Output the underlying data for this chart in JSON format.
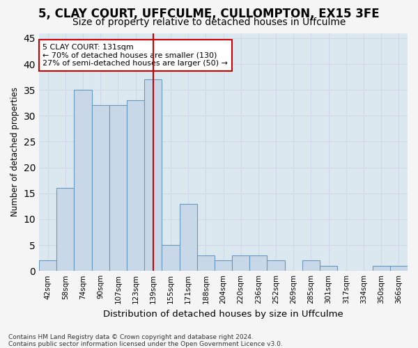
{
  "title1": "5, CLAY COURT, UFFCULME, CULLOMPTON, EX15 3FE",
  "title2": "Size of property relative to detached houses in Uffculme",
  "xlabel": "Distribution of detached houses by size in Uffculme",
  "ylabel": "Number of detached properties",
  "categories": [
    "42sqm",
    "58sqm",
    "74sqm",
    "90sqm",
    "107sqm",
    "123sqm",
    "139sqm",
    "155sqm",
    "171sqm",
    "188sqm",
    "204sqm",
    "220sqm",
    "236sqm",
    "252sqm",
    "269sqm",
    "285sqm",
    "301sqm",
    "317sqm",
    "334sqm",
    "350sqm",
    "366sqm"
  ],
  "values": [
    2,
    16,
    35,
    32,
    32,
    33,
    37,
    5,
    13,
    3,
    2,
    3,
    3,
    2,
    0,
    2,
    1,
    0,
    0,
    1,
    1
  ],
  "bar_color": "#c8d8e8",
  "bar_edge_color": "#6699bb",
  "bar_edge_width": 0.8,
  "red_line_index": 6,
  "red_line_color": "#cc0000",
  "annotation_text": "5 CLAY COURT: 131sqm\n← 70% of detached houses are smaller (130)\n27% of semi-detached houses are larger (50) →",
  "annotation_box_color": "#ffffff",
  "annotation_box_edge_color": "#cc0000",
  "ylim": [
    0,
    46
  ],
  "yticks": [
    0,
    5,
    10,
    15,
    20,
    25,
    30,
    35,
    40,
    45
  ],
  "grid_color": "#d0d8e8",
  "background_color": "#dce8f0",
  "fig_background_color": "#f5f5f5",
  "footnote": "Contains HM Land Registry data © Crown copyright and database right 2024.\nContains public sector information licensed under the Open Government Licence v3.0.",
  "title1_fontsize": 12,
  "title2_fontsize": 10,
  "xlabel_fontsize": 9.5,
  "ylabel_fontsize": 8.5,
  "annotation_fontsize": 8.0,
  "footnote_fontsize": 6.5
}
